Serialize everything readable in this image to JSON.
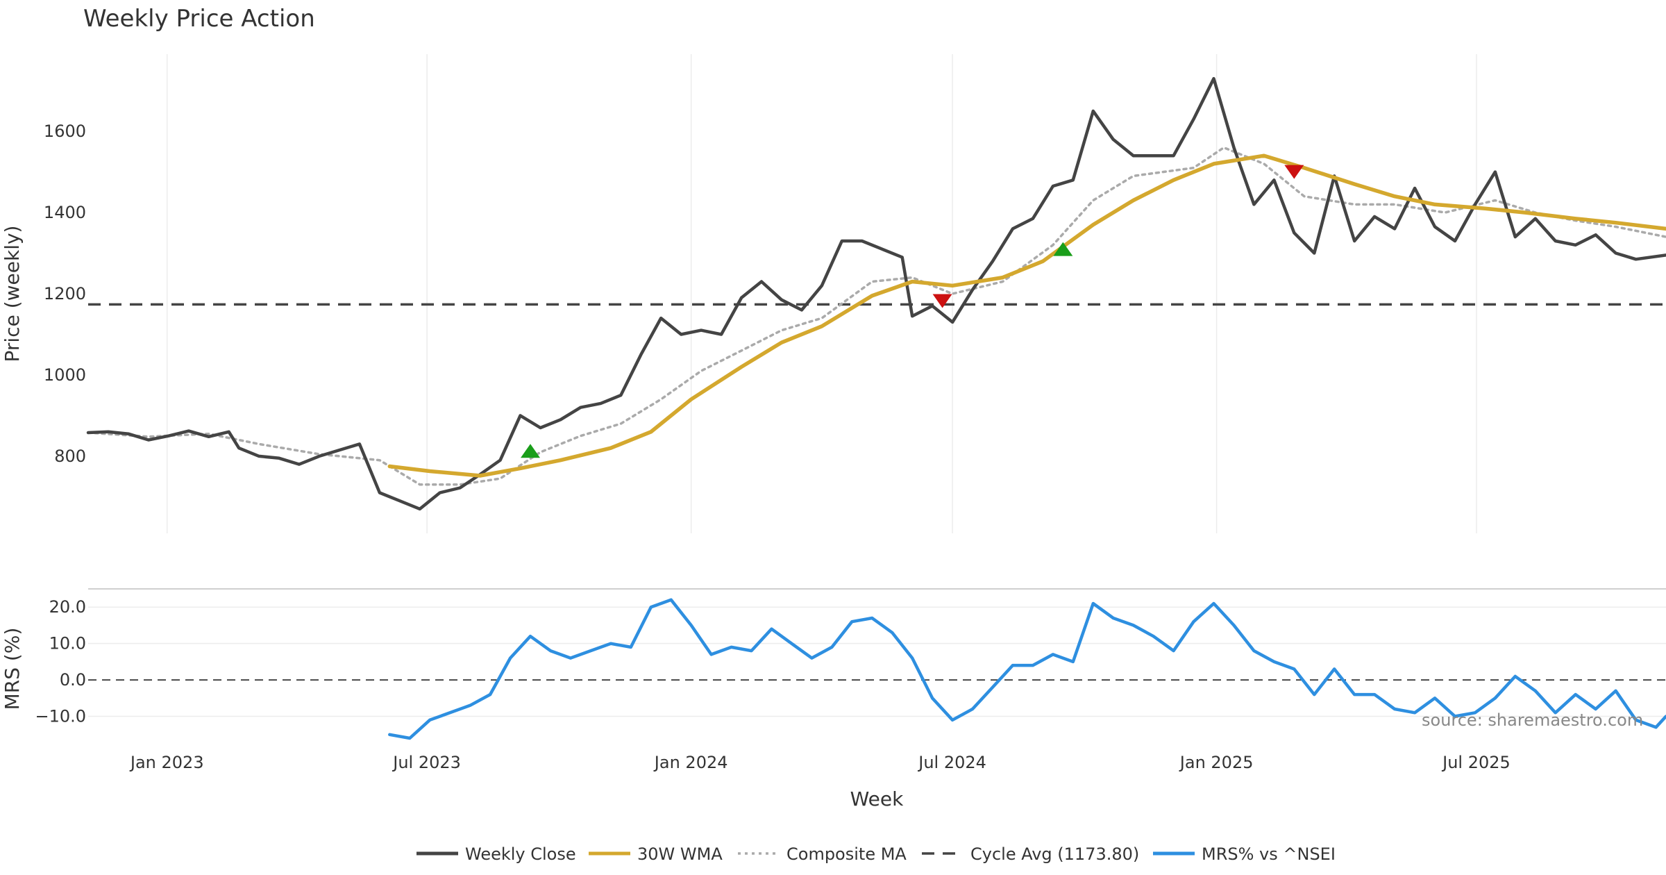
{
  "chart_data": {
    "type": "line",
    "title": "Weekly Price Action",
    "xlabel": "Week",
    "x_ticks": [
      "Jan 2023",
      "Jul 2023",
      "Jan 2024",
      "Jul 2024",
      "Jan 2025",
      "Jul 2025"
    ],
    "x_tick_values": [
      "2023-01-01",
      "2023-07-01",
      "2024-01-01",
      "2024-07-01",
      "2025-01-01",
      "2025-07-01"
    ],
    "x_range": [
      "2022-11-07",
      "2025-11-10"
    ],
    "grid": true,
    "legend_position": "bottom",
    "watermark": "source: sharemaestro.com",
    "price_panel": {
      "ylabel": "Price (weekly)",
      "ylim": [
        610,
        1790
      ],
      "y_ticks": [
        800,
        1000,
        1200,
        1400,
        1600
      ],
      "series": [
        {
          "name": "Weekly Close",
          "color": "#444444",
          "style": "solid",
          "points": [
            [
              "2022-11-07",
              858
            ],
            [
              "2022-11-21",
              860
            ],
            [
              "2022-12-05",
              855
            ],
            [
              "2022-12-19",
              840
            ],
            [
              "2023-01-02",
              850
            ],
            [
              "2023-01-16",
              862
            ],
            [
              "2023-01-30",
              848
            ],
            [
              "2023-02-13",
              860
            ],
            [
              "2023-02-20",
              820
            ],
            [
              "2023-03-06",
              800
            ],
            [
              "2023-03-20",
              795
            ],
            [
              "2023-04-03",
              780
            ],
            [
              "2023-04-17",
              800
            ],
            [
              "2023-05-01",
              815
            ],
            [
              "2023-05-15",
              830
            ],
            [
              "2023-05-29",
              710
            ],
            [
              "2023-06-12",
              690
            ],
            [
              "2023-06-26",
              670
            ],
            [
              "2023-07-10",
              710
            ],
            [
              "2023-07-24",
              722
            ],
            [
              "2023-08-07",
              755
            ],
            [
              "2023-08-21",
              790
            ],
            [
              "2023-09-04",
              900
            ],
            [
              "2023-09-18",
              870
            ],
            [
              "2023-10-02",
              890
            ],
            [
              "2023-10-16",
              920
            ],
            [
              "2023-10-30",
              930
            ],
            [
              "2023-11-13",
              950
            ],
            [
              "2023-11-27",
              1050
            ],
            [
              "2023-12-11",
              1140
            ],
            [
              "2023-12-25",
              1100
            ],
            [
              "2024-01-08",
              1110
            ],
            [
              "2024-01-22",
              1100
            ],
            [
              "2024-02-05",
              1190
            ],
            [
              "2024-02-19",
              1230
            ],
            [
              "2024-03-04",
              1185
            ],
            [
              "2024-03-18",
              1160
            ],
            [
              "2024-04-01",
              1220
            ],
            [
              "2024-04-15",
              1330
            ],
            [
              "2024-04-29",
              1330
            ],
            [
              "2024-05-13",
              1310
            ],
            [
              "2024-05-27",
              1290
            ],
            [
              "2024-06-03",
              1145
            ],
            [
              "2024-06-17",
              1170
            ],
            [
              "2024-07-01",
              1130
            ],
            [
              "2024-07-15",
              1210
            ],
            [
              "2024-07-29",
              1280
            ],
            [
              "2024-08-12",
              1360
            ],
            [
              "2024-08-26",
              1385
            ],
            [
              "2024-09-09",
              1465
            ],
            [
              "2024-09-23",
              1480
            ],
            [
              "2024-10-07",
              1650
            ],
            [
              "2024-10-21",
              1580
            ],
            [
              "2024-11-04",
              1540
            ],
            [
              "2024-11-18",
              1540
            ],
            [
              "2024-12-02",
              1540
            ],
            [
              "2024-12-16",
              1630
            ],
            [
              "2024-12-30",
              1730
            ],
            [
              "2025-01-13",
              1560
            ],
            [
              "2025-01-27",
              1420
            ],
            [
              "2025-02-10",
              1480
            ],
            [
              "2025-02-24",
              1350
            ],
            [
              "2025-03-10",
              1300
            ],
            [
              "2025-03-24",
              1490
            ],
            [
              "2025-04-07",
              1330
            ],
            [
              "2025-04-21",
              1390
            ],
            [
              "2025-05-05",
              1360
            ],
            [
              "2025-05-19",
              1460
            ],
            [
              "2025-06-02",
              1365
            ],
            [
              "2025-06-16",
              1330
            ],
            [
              "2025-06-30",
              1420
            ],
            [
              "2025-07-14",
              1500
            ],
            [
              "2025-07-28",
              1340
            ],
            [
              "2025-08-11",
              1385
            ],
            [
              "2025-08-25",
              1330
            ],
            [
              "2025-09-08",
              1320
            ],
            [
              "2025-09-22",
              1345
            ],
            [
              "2025-10-06",
              1300
            ],
            [
              "2025-10-20",
              1285
            ],
            [
              "2025-11-10",
              1295
            ]
          ]
        },
        {
          "name": "30W WMA",
          "color": "#D4A82E",
          "style": "solid",
          "points": [
            [
              "2023-06-05",
              775
            ],
            [
              "2023-07-03",
              763
            ],
            [
              "2023-08-07",
              752
            ],
            [
              "2023-09-04",
              770
            ],
            [
              "2023-10-02",
              790
            ],
            [
              "2023-11-06",
              820
            ],
            [
              "2023-12-04",
              860
            ],
            [
              "2024-01-01",
              940
            ],
            [
              "2024-02-05",
              1020
            ],
            [
              "2024-03-04",
              1080
            ],
            [
              "2024-04-01",
              1120
            ],
            [
              "2024-05-06",
              1195
            ],
            [
              "2024-06-03",
              1230
            ],
            [
              "2024-07-01",
              1220
            ],
            [
              "2024-08-05",
              1240
            ],
            [
              "2024-09-02",
              1280
            ],
            [
              "2024-10-07",
              1370
            ],
            [
              "2024-11-04",
              1430
            ],
            [
              "2024-12-02",
              1480
            ],
            [
              "2024-12-30",
              1520
            ],
            [
              "2025-02-03",
              1540
            ],
            [
              "2025-03-03",
              1510
            ],
            [
              "2025-04-07",
              1470
            ],
            [
              "2025-05-05",
              1440
            ],
            [
              "2025-06-02",
              1420
            ],
            [
              "2025-07-07",
              1410
            ],
            [
              "2025-08-04",
              1400
            ],
            [
              "2025-09-08",
              1385
            ],
            [
              "2025-10-06",
              1375
            ],
            [
              "2025-11-10",
              1360
            ]
          ]
        },
        {
          "name": "Composite MA",
          "color": "#AAAAAA",
          "style": "dotted",
          "points": [
            [
              "2022-11-07",
              858
            ],
            [
              "2022-12-19",
              848
            ],
            [
              "2023-01-30",
              855
            ],
            [
              "2023-03-06",
              830
            ],
            [
              "2023-04-17",
              805
            ],
            [
              "2023-05-29",
              790
            ],
            [
              "2023-06-26",
              730
            ],
            [
              "2023-07-24",
              730
            ],
            [
              "2023-08-21",
              745
            ],
            [
              "2023-09-18",
              810
            ],
            [
              "2023-10-16",
              850
            ],
            [
              "2023-11-13",
              880
            ],
            [
              "2023-12-11",
              940
            ],
            [
              "2024-01-08",
              1010
            ],
            [
              "2024-02-05",
              1060
            ],
            [
              "2024-03-04",
              1110
            ],
            [
              "2024-04-01",
              1140
            ],
            [
              "2024-05-06",
              1230
            ],
            [
              "2024-06-03",
              1240
            ],
            [
              "2024-07-01",
              1200
            ],
            [
              "2024-08-05",
              1230
            ],
            [
              "2024-09-09",
              1320
            ],
            [
              "2024-10-07",
              1430
            ],
            [
              "2024-11-04",
              1490
            ],
            [
              "2024-12-16",
              1510
            ],
            [
              "2025-01-06",
              1560
            ],
            [
              "2025-02-03",
              1520
            ],
            [
              "2025-03-03",
              1440
            ],
            [
              "2025-04-07",
              1420
            ],
            [
              "2025-05-05",
              1420
            ],
            [
              "2025-06-09",
              1400
            ],
            [
              "2025-07-14",
              1430
            ],
            [
              "2025-08-11",
              1400
            ],
            [
              "2025-09-08",
              1380
            ],
            [
              "2025-10-06",
              1365
            ],
            [
              "2025-11-10",
              1340
            ]
          ]
        },
        {
          "name": "Cycle Avg (1173.80)",
          "color": "#444444",
          "style": "dashed",
          "value": 1173.8
        }
      ],
      "markers": [
        {
          "type": "buy",
          "date": "2023-09-11",
          "value": 813
        },
        {
          "type": "sell",
          "date": "2024-06-24",
          "value": 1182
        },
        {
          "type": "buy",
          "date": "2024-09-16",
          "value": 1310
        },
        {
          "type": "sell",
          "date": "2025-02-24",
          "value": 1500
        }
      ]
    },
    "mrs_panel": {
      "ylabel": "MRS (%)",
      "ylim": [
        -16,
        25
      ],
      "y_ticks": [
        -10.0,
        0.0,
        10.0,
        20.0
      ],
      "y_tick_labels": [
        "−10.0",
        "0.0",
        "10.0",
        "20.0"
      ],
      "zero_line": 0,
      "series": [
        {
          "name": "MRS% vs ^NSEI",
          "color": "#2E8FE0",
          "style": "solid",
          "points": [
            [
              "2023-06-05",
              -15
            ],
            [
              "2023-06-19",
              -16
            ],
            [
              "2023-07-03",
              -11
            ],
            [
              "2023-07-17",
              -9
            ],
            [
              "2023-07-31",
              -7
            ],
            [
              "2023-08-14",
              -4
            ],
            [
              "2023-08-28",
              6
            ],
            [
              "2023-09-11",
              12
            ],
            [
              "2023-09-25",
              8
            ],
            [
              "2023-10-09",
              6
            ],
            [
              "2023-10-23",
              8
            ],
            [
              "2023-11-06",
              10
            ],
            [
              "2023-11-20",
              9
            ],
            [
              "2023-12-04",
              20
            ],
            [
              "2023-12-18",
              22
            ],
            [
              "2024-01-01",
              15
            ],
            [
              "2024-01-15",
              7
            ],
            [
              "2024-01-29",
              9
            ],
            [
              "2024-02-12",
              8
            ],
            [
              "2024-02-26",
              14
            ],
            [
              "2024-03-11",
              10
            ],
            [
              "2024-03-25",
              6
            ],
            [
              "2024-04-08",
              9
            ],
            [
              "2024-04-22",
              16
            ],
            [
              "2024-05-06",
              17
            ],
            [
              "2024-05-20",
              13
            ],
            [
              "2024-06-03",
              6
            ],
            [
              "2024-06-17",
              -5
            ],
            [
              "2024-07-01",
              -11
            ],
            [
              "2024-07-15",
              -8
            ],
            [
              "2024-07-29",
              -2
            ],
            [
              "2024-08-12",
              4
            ],
            [
              "2024-08-26",
              4
            ],
            [
              "2024-09-09",
              7
            ],
            [
              "2024-09-23",
              5
            ],
            [
              "2024-10-07",
              21
            ],
            [
              "2024-10-21",
              17
            ],
            [
              "2024-11-04",
              15
            ],
            [
              "2024-11-18",
              12
            ],
            [
              "2024-12-02",
              8
            ],
            [
              "2024-12-16",
              16
            ],
            [
              "2024-12-30",
              21
            ],
            [
              "2025-01-13",
              15
            ],
            [
              "2025-01-27",
              8
            ],
            [
              "2025-02-10",
              5
            ],
            [
              "2025-02-24",
              3
            ],
            [
              "2025-03-10",
              -4
            ],
            [
              "2025-03-24",
              3
            ],
            [
              "2025-04-07",
              -4
            ],
            [
              "2025-04-21",
              -4
            ],
            [
              "2025-05-05",
              -8
            ],
            [
              "2025-05-19",
              -9
            ],
            [
              "2025-06-02",
              -5
            ],
            [
              "2025-06-16",
              -10
            ],
            [
              "2025-06-30",
              -9
            ],
            [
              "2025-07-14",
              -5
            ],
            [
              "2025-07-28",
              1
            ],
            [
              "2025-08-11",
              -3
            ],
            [
              "2025-08-25",
              -9
            ],
            [
              "2025-09-08",
              -4
            ],
            [
              "2025-09-22",
              -8
            ],
            [
              "2025-10-06",
              -3
            ],
            [
              "2025-10-20",
              -11
            ],
            [
              "2025-11-03",
              -13
            ],
            [
              "2025-11-10",
              -10
            ]
          ]
        }
      ]
    }
  }
}
